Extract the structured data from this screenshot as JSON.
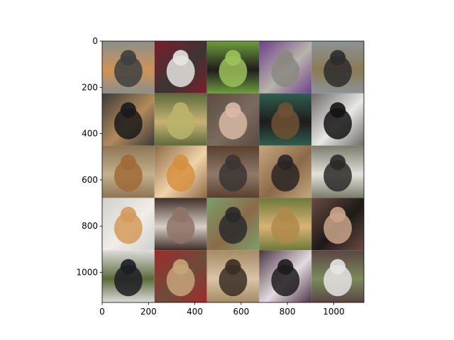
{
  "chart_data": {
    "type": "image-grid",
    "title": "",
    "xlabel": "",
    "ylabel": "",
    "xlim": [
      0,
      1130
    ],
    "ylim": [
      1130,
      0
    ],
    "xticks": [
      0,
      200,
      400,
      600,
      800,
      1000
    ],
    "yticks": [
      0,
      200,
      400,
      600,
      800,
      1000
    ],
    "xtick_labels": [
      "0",
      "200",
      "400",
      "600",
      "800",
      "1000"
    ],
    "ytick_labels": [
      "0",
      "200",
      "400",
      "600",
      "800",
      "1000"
    ],
    "grid": false,
    "rows": 5,
    "cols": 5,
    "cells": [
      {
        "subject": "cat",
        "tones": [
          "#8a8f8c",
          "#3d3f40",
          "#d09355"
        ]
      },
      {
        "subject": "cat",
        "tones": [
          "#7b1e2b",
          "#e6e4e1",
          "#3b3535"
        ]
      },
      {
        "subject": "cat",
        "tones": [
          "#6e9e3c",
          "#9cc15a",
          "#1f1c1c"
        ]
      },
      {
        "subject": "cat",
        "tones": [
          "#6e3f8b",
          "#8b8781",
          "#b8b4ad"
        ]
      },
      {
        "subject": "dog",
        "tones": [
          "#8c9296",
          "#2e2c2c",
          "#8a7a55"
        ]
      },
      {
        "subject": "cat",
        "tones": [
          "#3a3a3a",
          "#1b1a1a",
          "#b18a5a"
        ]
      },
      {
        "subject": "cat",
        "tones": [
          "#5c6a3a",
          "#b9b46a",
          "#c8b276"
        ]
      },
      {
        "subject": "cat",
        "tones": [
          "#5b4b40",
          "#d9b8a6",
          "#7a6b5e"
        ]
      },
      {
        "subject": "dog",
        "tones": [
          "#2f5e4f",
          "#6e5134",
          "#1d1c1a"
        ]
      },
      {
        "subject": "cat",
        "tones": [
          "#6f6a66",
          "#141414",
          "#e7e7e5"
        ]
      },
      {
        "subject": "dog",
        "tones": [
          "#8d7455",
          "#a06a36",
          "#c4b08c"
        ]
      },
      {
        "subject": "cat",
        "tones": [
          "#8e6a46",
          "#d6903f",
          "#f0d3a9"
        ]
      },
      {
        "subject": "cat",
        "tones": [
          "#593f2c",
          "#3a3533",
          "#8f7a6a"
        ]
      },
      {
        "subject": "dog",
        "tones": [
          "#c7a680",
          "#2a2623",
          "#8a6a48"
        ]
      },
      {
        "subject": "dog",
        "tones": [
          "#7a7b6b",
          "#2b2a28",
          "#e3e1dc"
        ]
      },
      {
        "subject": "cat",
        "tones": [
          "#cfd0cd",
          "#d39a5a",
          "#f1ede6"
        ]
      },
      {
        "subject": "dog",
        "tones": [
          "#3f2e27",
          "#8f7366",
          "#d8cfc8"
        ]
      },
      {
        "subject": "dog",
        "tones": [
          "#7aa06a",
          "#2a2a2a",
          "#8b6b4a"
        ]
      },
      {
        "subject": "dog",
        "tones": [
          "#6d7a3a",
          "#b08a4a",
          "#d9b276"
        ]
      },
      {
        "subject": "dog",
        "tones": [
          "#6b4b43",
          "#caa48a",
          "#1e1a18"
        ]
      },
      {
        "subject": "dog",
        "tones": [
          "#dedcdc",
          "#1d1e23",
          "#5a6b3a"
        ]
      },
      {
        "subject": "dog",
        "tones": [
          "#a12a2a",
          "#c7a57a",
          "#6d4c3a"
        ]
      },
      {
        "subject": "dog",
        "tones": [
          "#a58a64",
          "#3a2d23",
          "#d9c5a6"
        ]
      },
      {
        "subject": "cat",
        "tones": [
          "#4c3343",
          "#1d1b1e",
          "#e3dbe1"
        ]
      },
      {
        "subject": "cat",
        "tones": [
          "#5b4444",
          "#e6e3e4",
          "#7a8a5a"
        ]
      }
    ]
  }
}
